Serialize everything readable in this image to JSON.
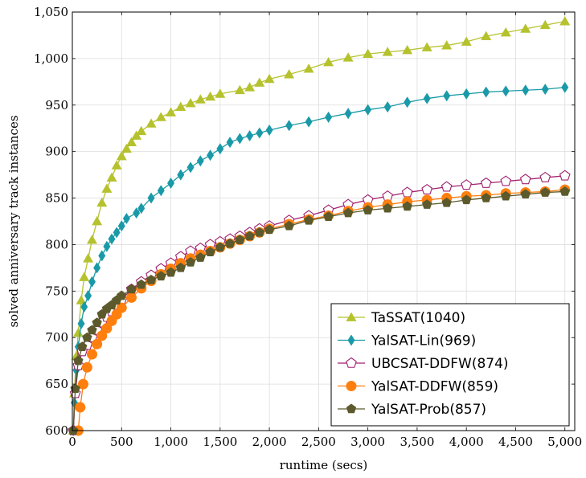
{
  "chart_data": {
    "type": "line",
    "xlabel": "runtime (secs)",
    "ylabel": "solved anniversary track instances",
    "xlim": [
      0,
      5100
    ],
    "ylim": [
      600,
      1050
    ],
    "x_ticks": [
      0,
      500,
      1000,
      1500,
      2000,
      2500,
      3000,
      3500,
      4000,
      4500,
      5000
    ],
    "x_tick_labels": [
      "0",
      "500",
      "1,000",
      "1,500",
      "2,000",
      "2,500",
      "3,000",
      "3,500",
      "4,000",
      "4,500",
      "5,000"
    ],
    "y_ticks": [
      600,
      650,
      700,
      750,
      800,
      850,
      900,
      950,
      1000,
      1050
    ],
    "y_tick_labels": [
      "600",
      "650",
      "700",
      "750",
      "800",
      "850",
      "900",
      "950",
      "1,000",
      "1,050"
    ],
    "grid": true,
    "legend_position": "bottom-right",
    "series": [
      {
        "name": "TaSSAT(1040)",
        "color": "#b5c22e",
        "marker": "triangle",
        "points": [
          [
            10,
            600
          ],
          [
            20,
            640
          ],
          [
            40,
            680
          ],
          [
            60,
            705
          ],
          [
            90,
            740
          ],
          [
            120,
            765
          ],
          [
            160,
            785
          ],
          [
            200,
            805
          ],
          [
            250,
            825
          ],
          [
            300,
            845
          ],
          [
            350,
            860
          ],
          [
            400,
            872
          ],
          [
            450,
            885
          ],
          [
            500,
            895
          ],
          [
            550,
            903
          ],
          [
            600,
            910
          ],
          [
            650,
            917
          ],
          [
            700,
            922
          ],
          [
            800,
            930
          ],
          [
            900,
            937
          ],
          [
            1000,
            942
          ],
          [
            1100,
            948
          ],
          [
            1200,
            952
          ],
          [
            1300,
            956
          ],
          [
            1400,
            959
          ],
          [
            1500,
            962
          ],
          [
            1700,
            966
          ],
          [
            1800,
            969
          ],
          [
            1900,
            974
          ],
          [
            2000,
            978
          ],
          [
            2200,
            983
          ],
          [
            2400,
            989
          ],
          [
            2600,
            996
          ],
          [
            2800,
            1001
          ],
          [
            3000,
            1005
          ],
          [
            3200,
            1007
          ],
          [
            3400,
            1009
          ],
          [
            3600,
            1012
          ],
          [
            3800,
            1014
          ],
          [
            4000,
            1018
          ],
          [
            4200,
            1024
          ],
          [
            4400,
            1028
          ],
          [
            4600,
            1032
          ],
          [
            4800,
            1036
          ],
          [
            5000,
            1040
          ]
        ]
      },
      {
        "name": "YalSAT-Lin(969)",
        "color": "#1a9aa8",
        "marker": "diamond",
        "points": [
          [
            10,
            600
          ],
          [
            20,
            630
          ],
          [
            40,
            665
          ],
          [
            60,
            690
          ],
          [
            90,
            715
          ],
          [
            120,
            733
          ],
          [
            160,
            745
          ],
          [
            200,
            760
          ],
          [
            250,
            775
          ],
          [
            300,
            788
          ],
          [
            350,
            798
          ],
          [
            400,
            806
          ],
          [
            450,
            813
          ],
          [
            500,
            820
          ],
          [
            550,
            828
          ],
          [
            650,
            834
          ],
          [
            700,
            839
          ],
          [
            800,
            850
          ],
          [
            900,
            858
          ],
          [
            1000,
            866
          ],
          [
            1100,
            875
          ],
          [
            1200,
            883
          ],
          [
            1300,
            890
          ],
          [
            1400,
            896
          ],
          [
            1500,
            903
          ],
          [
            1600,
            910
          ],
          [
            1700,
            914
          ],
          [
            1800,
            917
          ],
          [
            1900,
            920
          ],
          [
            2000,
            923
          ],
          [
            2200,
            928
          ],
          [
            2400,
            932
          ],
          [
            2600,
            937
          ],
          [
            2800,
            941
          ],
          [
            3000,
            945
          ],
          [
            3200,
            948
          ],
          [
            3400,
            953
          ],
          [
            3600,
            957
          ],
          [
            3800,
            960
          ],
          [
            4000,
            962
          ],
          [
            4200,
            964
          ],
          [
            4400,
            965
          ],
          [
            4600,
            966
          ],
          [
            4800,
            967
          ],
          [
            5000,
            969
          ]
        ]
      },
      {
        "name": "UBCSAT-DDFW(874)",
        "color": "#a0206e",
        "marker": "pentagon-open",
        "points": [
          [
            10,
            600
          ],
          [
            30,
            640
          ],
          [
            60,
            670
          ],
          [
            100,
            685
          ],
          [
            150,
            692
          ],
          [
            200,
            700
          ],
          [
            250,
            708
          ],
          [
            300,
            716
          ],
          [
            350,
            722
          ],
          [
            400,
            728
          ],
          [
            450,
            735
          ],
          [
            500,
            741
          ],
          [
            600,
            752
          ],
          [
            700,
            760
          ],
          [
            800,
            767
          ],
          [
            900,
            774
          ],
          [
            1000,
            780
          ],
          [
            1100,
            787
          ],
          [
            1200,
            793
          ],
          [
            1300,
            796
          ],
          [
            1400,
            800
          ],
          [
            1500,
            803
          ],
          [
            1600,
            806
          ],
          [
            1700,
            809
          ],
          [
            1800,
            813
          ],
          [
            1900,
            817
          ],
          [
            2000,
            820
          ],
          [
            2200,
            826
          ],
          [
            2400,
            831
          ],
          [
            2600,
            837
          ],
          [
            2800,
            843
          ],
          [
            3000,
            848
          ],
          [
            3200,
            852
          ],
          [
            3400,
            856
          ],
          [
            3600,
            859
          ],
          [
            3800,
            862
          ],
          [
            4000,
            864
          ],
          [
            4200,
            866
          ],
          [
            4400,
            868
          ],
          [
            4600,
            870
          ],
          [
            4800,
            872
          ],
          [
            5000,
            874
          ]
        ]
      },
      {
        "name": "YalSAT-DDFW(859)",
        "color": "#ff7f0e",
        "marker": "circle",
        "points": [
          [
            60,
            600
          ],
          [
            80,
            625
          ],
          [
            110,
            650
          ],
          [
            150,
            668
          ],
          [
            200,
            682
          ],
          [
            250,
            693
          ],
          [
            300,
            702
          ],
          [
            350,
            710
          ],
          [
            400,
            718
          ],
          [
            450,
            725
          ],
          [
            500,
            732
          ],
          [
            600,
            743
          ],
          [
            700,
            753
          ],
          [
            800,
            761
          ],
          [
            900,
            768
          ],
          [
            1000,
            774
          ],
          [
            1100,
            780
          ],
          [
            1200,
            785
          ],
          [
            1300,
            789
          ],
          [
            1400,
            793
          ],
          [
            1500,
            797
          ],
          [
            1600,
            801
          ],
          [
            1700,
            805
          ],
          [
            1800,
            809
          ],
          [
            1900,
            813
          ],
          [
            2000,
            817
          ],
          [
            2200,
            822
          ],
          [
            2400,
            827
          ],
          [
            2600,
            831
          ],
          [
            2800,
            836
          ],
          [
            3000,
            840
          ],
          [
            3200,
            843
          ],
          [
            3400,
            846
          ],
          [
            3600,
            848
          ],
          [
            3800,
            850
          ],
          [
            4000,
            852
          ],
          [
            4200,
            853
          ],
          [
            4400,
            855
          ],
          [
            4600,
            856
          ],
          [
            4800,
            857
          ],
          [
            5000,
            859
          ]
        ]
      },
      {
        "name": "YalSAT-Prob(857)",
        "color": "#5c5a2c",
        "marker": "pentagon",
        "points": [
          [
            10,
            600
          ],
          [
            30,
            645
          ],
          [
            60,
            675
          ],
          [
            100,
            690
          ],
          [
            150,
            700
          ],
          [
            200,
            708
          ],
          [
            250,
            716
          ],
          [
            300,
            725
          ],
          [
            350,
            731
          ],
          [
            400,
            735
          ],
          [
            450,
            740
          ],
          [
            500,
            745
          ],
          [
            600,
            752
          ],
          [
            700,
            757
          ],
          [
            800,
            762
          ],
          [
            900,
            766
          ],
          [
            1000,
            770
          ],
          [
            1100,
            775
          ],
          [
            1200,
            781
          ],
          [
            1300,
            786
          ],
          [
            1400,
            792
          ],
          [
            1500,
            797
          ],
          [
            1600,
            801
          ],
          [
            1700,
            805
          ],
          [
            1800,
            809
          ],
          [
            1900,
            813
          ],
          [
            2000,
            816
          ],
          [
            2200,
            820
          ],
          [
            2400,
            826
          ],
          [
            2600,
            830
          ],
          [
            2800,
            834
          ],
          [
            3000,
            837
          ],
          [
            3200,
            839
          ],
          [
            3400,
            841
          ],
          [
            3600,
            843
          ],
          [
            3800,
            845
          ],
          [
            4000,
            848
          ],
          [
            4200,
            850
          ],
          [
            4400,
            852
          ],
          [
            4600,
            854
          ],
          [
            4800,
            856
          ],
          [
            5000,
            857
          ]
        ]
      }
    ]
  }
}
